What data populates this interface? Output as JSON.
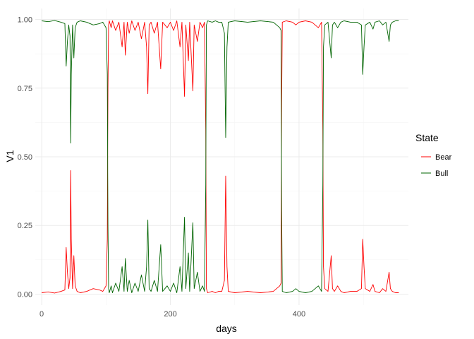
{
  "chart_data": {
    "type": "line",
    "title": "",
    "xlabel": "days",
    "ylabel": "V1",
    "xlim": [
      -10,
      570
    ],
    "ylim": [
      -0.04,
      1.04
    ],
    "x_ticks": [
      0,
      200,
      400
    ],
    "y_ticks": [
      0.0,
      0.25,
      0.5,
      0.75,
      1.0
    ],
    "y_tick_labels": [
      "0.00",
      "0.25",
      "0.50",
      "0.75",
      "1.00"
    ],
    "grid": true,
    "legend": {
      "title": "State",
      "placement": "right"
    },
    "series": [
      {
        "name": "Bear",
        "color": "#ff0000",
        "points": [
          [
            0,
            0.005
          ],
          [
            10,
            0.008
          ],
          [
            20,
            0.004
          ],
          [
            30,
            0.01
          ],
          [
            36,
            0.015
          ],
          [
            38,
            0.17
          ],
          [
            40,
            0.08
          ],
          [
            42,
            0.02
          ],
          [
            44,
            0.06
          ],
          [
            45,
            0.45
          ],
          [
            46,
            0.2
          ],
          [
            48,
            0.02
          ],
          [
            50,
            0.14
          ],
          [
            52,
            0.03
          ],
          [
            55,
            0.01
          ],
          [
            60,
            0.005
          ],
          [
            70,
            0.01
          ],
          [
            80,
            0.02
          ],
          [
            90,
            0.015
          ],
          [
            95,
            0.01
          ],
          [
            100,
            0.03
          ],
          [
            102,
            0.2
          ],
          [
            103,
            0.75
          ],
          [
            104,
            0.98
          ],
          [
            105,
            0.995
          ],
          [
            108,
            0.97
          ],
          [
            110,
            0.995
          ],
          [
            115,
            0.96
          ],
          [
            120,
            0.99
          ],
          [
            125,
            0.9
          ],
          [
            128,
            0.99
          ],
          [
            130,
            0.87
          ],
          [
            133,
            0.99
          ],
          [
            136,
            0.95
          ],
          [
            140,
            0.995
          ],
          [
            145,
            0.96
          ],
          [
            150,
            0.99
          ],
          [
            155,
            0.93
          ],
          [
            160,
            0.99
          ],
          [
            163,
            0.9
          ],
          [
            165,
            0.73
          ],
          [
            167,
            0.98
          ],
          [
            170,
            0.99
          ],
          [
            175,
            0.95
          ],
          [
            180,
            0.99
          ],
          [
            185,
            0.82
          ],
          [
            188,
            0.99
          ],
          [
            195,
            0.97
          ],
          [
            200,
            0.99
          ],
          [
            205,
            0.96
          ],
          [
            210,
            0.995
          ],
          [
            215,
            0.9
          ],
          [
            218,
            0.99
          ],
          [
            222,
            0.72
          ],
          [
            224,
            0.98
          ],
          [
            228,
            0.85
          ],
          [
            230,
            0.99
          ],
          [
            235,
            0.74
          ],
          [
            237,
            0.98
          ],
          [
            242,
            0.92
          ],
          [
            246,
            0.99
          ],
          [
            250,
            0.97
          ],
          [
            253,
            0.99
          ],
          [
            255,
            0.6
          ],
          [
            256,
            0.02
          ],
          [
            258,
            0.005
          ],
          [
            265,
            0.01
          ],
          [
            270,
            0.005
          ],
          [
            275,
            0.01
          ],
          [
            280,
            0.01
          ],
          [
            284,
            0.05
          ],
          [
            286,
            0.43
          ],
          [
            288,
            0.1
          ],
          [
            290,
            0.01
          ],
          [
            300,
            0.005
          ],
          [
            320,
            0.01
          ],
          [
            340,
            0.005
          ],
          [
            360,
            0.01
          ],
          [
            370,
            0.03
          ],
          [
            372,
            0.04
          ],
          [
            373,
            0.7
          ],
          [
            374,
            0.99
          ],
          [
            380,
            0.995
          ],
          [
            390,
            0.99
          ],
          [
            395,
            0.98
          ],
          [
            400,
            0.99
          ],
          [
            410,
            0.995
          ],
          [
            420,
            0.99
          ],
          [
            430,
            0.97
          ],
          [
            435,
            0.99
          ],
          [
            437,
            0.6
          ],
          [
            438,
            0.1
          ],
          [
            440,
            0.02
          ],
          [
            445,
            0.01
          ],
          [
            450,
            0.14
          ],
          [
            452,
            0.02
          ],
          [
            455,
            0.01
          ],
          [
            460,
            0.03
          ],
          [
            465,
            0.01
          ],
          [
            470,
            0.005
          ],
          [
            480,
            0.01
          ],
          [
            490,
            0.01
          ],
          [
            497,
            0.02
          ],
          [
            499,
            0.2
          ],
          [
            501,
            0.1
          ],
          [
            503,
            0.02
          ],
          [
            510,
            0.01
          ],
          [
            515,
            0.035
          ],
          [
            518,
            0.01
          ],
          [
            525,
            0.005
          ],
          [
            530,
            0.02
          ],
          [
            535,
            0.01
          ],
          [
            540,
            0.08
          ],
          [
            542,
            0.02
          ],
          [
            545,
            0.01
          ],
          [
            550,
            0.005
          ],
          [
            555,
            0.005
          ]
        ]
      },
      {
        "name": "Bull",
        "color": "#006400",
        "points": [
          [
            0,
            0.995
          ],
          [
            10,
            0.992
          ],
          [
            20,
            0.996
          ],
          [
            30,
            0.99
          ],
          [
            36,
            0.985
          ],
          [
            38,
            0.83
          ],
          [
            40,
            0.92
          ],
          [
            42,
            0.98
          ],
          [
            44,
            0.94
          ],
          [
            45,
            0.55
          ],
          [
            46,
            0.8
          ],
          [
            48,
            0.98
          ],
          [
            50,
            0.86
          ],
          [
            52,
            0.97
          ],
          [
            55,
            0.99
          ],
          [
            60,
            0.995
          ],
          [
            70,
            0.99
          ],
          [
            80,
            0.98
          ],
          [
            90,
            0.985
          ],
          [
            95,
            0.99
          ],
          [
            100,
            0.97
          ],
          [
            102,
            0.8
          ],
          [
            103,
            0.25
          ],
          [
            104,
            0.02
          ],
          [
            105,
            0.005
          ],
          [
            108,
            0.03
          ],
          [
            110,
            0.005
          ],
          [
            115,
            0.04
          ],
          [
            120,
            0.01
          ],
          [
            125,
            0.1
          ],
          [
            128,
            0.01
          ],
          [
            130,
            0.13
          ],
          [
            133,
            0.01
          ],
          [
            136,
            0.05
          ],
          [
            140,
            0.005
          ],
          [
            145,
            0.04
          ],
          [
            150,
            0.01
          ],
          [
            155,
            0.07
          ],
          [
            160,
            0.01
          ],
          [
            163,
            0.1
          ],
          [
            165,
            0.27
          ],
          [
            167,
            0.02
          ],
          [
            170,
            0.01
          ],
          [
            175,
            0.05
          ],
          [
            180,
            0.01
          ],
          [
            185,
            0.18
          ],
          [
            188,
            0.01
          ],
          [
            195,
            0.03
          ],
          [
            200,
            0.01
          ],
          [
            205,
            0.04
          ],
          [
            210,
            0.005
          ],
          [
            215,
            0.1
          ],
          [
            218,
            0.01
          ],
          [
            222,
            0.28
          ],
          [
            224,
            0.02
          ],
          [
            228,
            0.15
          ],
          [
            230,
            0.01
          ],
          [
            235,
            0.26
          ],
          [
            237,
            0.02
          ],
          [
            242,
            0.08
          ],
          [
            246,
            0.01
          ],
          [
            250,
            0.03
          ],
          [
            253,
            0.01
          ],
          [
            255,
            0.4
          ],
          [
            256,
            0.98
          ],
          [
            258,
            0.995
          ],
          [
            265,
            0.99
          ],
          [
            270,
            0.995
          ],
          [
            275,
            0.99
          ],
          [
            280,
            0.99
          ],
          [
            284,
            0.95
          ],
          [
            286,
            0.57
          ],
          [
            288,
            0.9
          ],
          [
            290,
            0.99
          ],
          [
            300,
            0.995
          ],
          [
            320,
            0.99
          ],
          [
            340,
            0.995
          ],
          [
            360,
            0.99
          ],
          [
            370,
            0.97
          ],
          [
            372,
            0.96
          ],
          [
            373,
            0.3
          ],
          [
            374,
            0.01
          ],
          [
            380,
            0.005
          ],
          [
            390,
            0.01
          ],
          [
            395,
            0.02
          ],
          [
            400,
            0.01
          ],
          [
            410,
            0.005
          ],
          [
            420,
            0.01
          ],
          [
            430,
            0.03
          ],
          [
            435,
            0.01
          ],
          [
            437,
            0.4
          ],
          [
            438,
            0.9
          ],
          [
            440,
            0.98
          ],
          [
            445,
            0.99
          ],
          [
            450,
            0.86
          ],
          [
            452,
            0.98
          ],
          [
            455,
            0.99
          ],
          [
            460,
            0.97
          ],
          [
            465,
            0.99
          ],
          [
            470,
            0.995
          ],
          [
            480,
            0.99
          ],
          [
            490,
            0.99
          ],
          [
            497,
            0.98
          ],
          [
            499,
            0.8
          ],
          [
            501,
            0.9
          ],
          [
            503,
            0.98
          ],
          [
            510,
            0.99
          ],
          [
            515,
            0.965
          ],
          [
            518,
            0.99
          ],
          [
            525,
            0.995
          ],
          [
            530,
            0.98
          ],
          [
            535,
            0.99
          ],
          [
            540,
            0.92
          ],
          [
            542,
            0.98
          ],
          [
            545,
            0.99
          ],
          [
            550,
            0.995
          ],
          [
            555,
            0.995
          ]
        ]
      }
    ]
  }
}
